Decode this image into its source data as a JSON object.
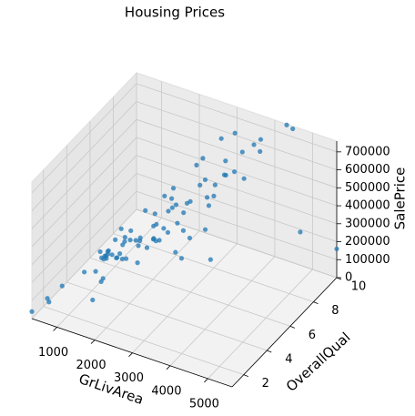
{
  "chart_data": {
    "type": "scatter3d",
    "title": "Housing Prices",
    "xlabel": "GrLivArea",
    "ylabel": "OverallQual",
    "zlabel": "SalePrice",
    "xlim": [
      334,
      5642
    ],
    "ylim": [
      1,
      10
    ],
    "zlim": [
      0,
      760000
    ],
    "xticks": [
      1000,
      2000,
      3000,
      4000,
      5000
    ],
    "yticks": [
      2,
      4,
      6,
      8,
      10
    ],
    "zticks": [
      0,
      100000,
      200000,
      300000,
      400000,
      500000,
      600000,
      700000
    ],
    "grid": true,
    "series": [
      {
        "color": "#1f77b4",
        "x": [
          1710,
          1262,
          1786,
          1717,
          2198,
          1362,
          1694,
          2090,
          1774,
          1077,
          1040,
          2324,
          912,
          1494,
          1253,
          854,
          1004,
          1296,
          1114,
          1339,
          2376,
          1108,
          1795,
          1060,
          1600,
          1900,
          1704,
          1882,
          1668,
          1247,
          1329,
          1228,
          2034,
          1134,
          1620,
          2290,
          1500,
          1902,
          1006,
          2452,
          1616,
          1432,
          1112,
          3222,
          2000,
          2464,
          2694,
          1440,
          3000,
          2726,
          3140,
          2704,
          3493,
          2234,
          2822,
          3608,
          3447,
          4476,
          4316,
          3627,
          5642,
          4676,
          3238,
          2945,
          2582,
          2402,
          334,
          480,
          520,
          438,
          2978,
          3279,
          2868,
          2172,
          1844,
          1656,
          1980,
          2500,
          1400,
          1550,
          1200,
          950,
          800,
          1100,
          2600,
          3082
        ],
        "y": [
          7,
          6,
          7,
          7,
          8,
          5,
          8,
          7,
          7,
          5,
          5,
          9,
          5,
          7,
          6,
          7,
          6,
          4,
          5,
          5,
          8,
          7,
          8,
          5,
          5,
          8,
          7,
          8,
          6,
          4,
          3,
          5,
          8,
          5,
          9,
          8,
          5,
          5,
          5,
          7,
          6,
          5,
          5,
          7,
          8,
          9,
          10,
          8,
          8,
          9,
          10,
          10,
          9,
          9,
          8,
          10,
          10,
          10,
          10,
          10,
          10,
          10,
          9,
          10,
          10,
          9,
          1,
          2,
          3,
          2,
          6,
          8,
          8,
          6,
          6,
          6,
          7,
          7,
          6,
          6,
          6,
          5,
          4,
          4,
          6,
          7
        ],
        "z": [
          208500,
          181500,
          223500,
          140000,
          250000,
          143000,
          307000,
          200000,
          129900,
          118000,
          129500,
          345000,
          144000,
          279500,
          157000,
          132000,
          149000,
          90000,
          159000,
          139000,
          325300,
          139400,
          230000,
          129900,
          154000,
          256300,
          134800,
          306000,
          207500,
          68500,
          40000,
          149350,
          179900,
          165500,
          277500,
          309000,
          145000,
          153000,
          109000,
          82000,
          160000,
          170000,
          144000,
          130250,
          280000,
          385000,
          438780,
          190000,
          400000,
          375000,
          520000,
          360000,
          465000,
          450000,
          380000,
          556581,
          582933,
          745000,
          755000,
          625000,
          160000,
          184750,
          485000,
          611657,
          555000,
          500000,
          39300,
          35311,
          60000,
          52500,
          300000,
          538000,
          337500,
          230000,
          165000,
          190000,
          215000,
          240000,
          176000,
          185000,
          135000,
          112000,
          90000,
          115000,
          194000,
          287000
        ]
      }
    ]
  }
}
